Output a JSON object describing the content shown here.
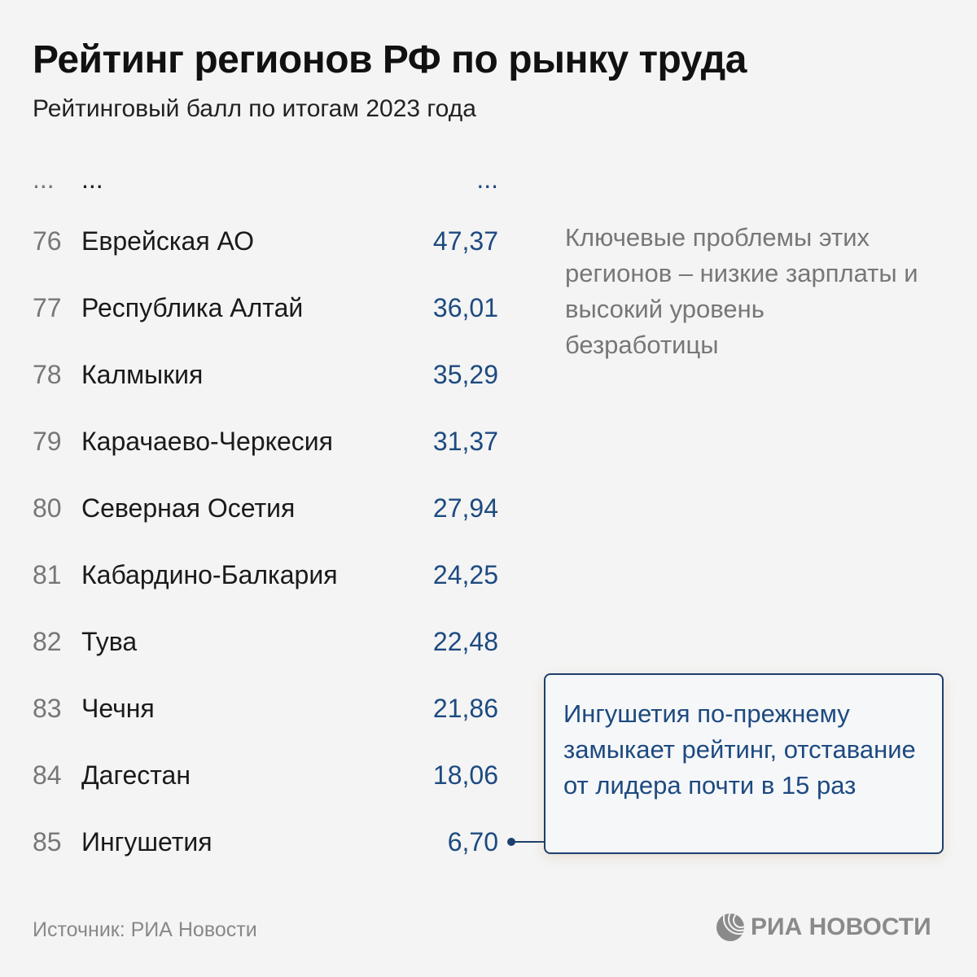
{
  "header": {
    "title": "Рейтинг регионов РФ по рынку труда",
    "subtitle": "Рейтинговый балл по итогам 2023 года"
  },
  "chart_data": {
    "type": "table",
    "title": "Рейтинг регионов РФ по рынку труда",
    "subtitle": "Рейтинговый балл по итогам 2023 года",
    "columns": [
      "rank",
      "region",
      "score"
    ],
    "ellipsis_row": [
      "...",
      "...",
      "..."
    ],
    "rows": [
      {
        "rank": "76",
        "region": "Еврейская АО",
        "score": "47,37"
      },
      {
        "rank": "77",
        "region": "Республика Алтай",
        "score": "36,01"
      },
      {
        "rank": "78",
        "region": "Калмыкия",
        "score": "35,29"
      },
      {
        "rank": "79",
        "region": "Карачаево-Черкесия",
        "score": "31,37"
      },
      {
        "rank": "80",
        "region": "Северная Осетия",
        "score": "27,94"
      },
      {
        "rank": "81",
        "region": "Кабардино-Балкария",
        "score": "24,25"
      },
      {
        "rank": "82",
        "region": "Тува",
        "score": "22,48"
      },
      {
        "rank": "83",
        "region": "Чечня",
        "score": "21,86"
      },
      {
        "rank": "84",
        "region": "Дагестан",
        "score": "18,06"
      },
      {
        "rank": "85",
        "region": "Ингушетия",
        "score": "6,70"
      }
    ],
    "annotations": [
      "Ключевые проблемы этих регионов – низкие зарплаты и высокий уровень безработицы",
      "Ингушетия по-прежнему замыкает рейтинг, отставание от лидера почти в 15 раз"
    ]
  },
  "footer": {
    "source": "Источник: РИА Новости",
    "logo": "РИА НОВОСТИ"
  },
  "colors": {
    "accent": "#1d4a80",
    "border": "#1d3f6e",
    "background": "#f4f4f4",
    "rank": "#777777"
  }
}
